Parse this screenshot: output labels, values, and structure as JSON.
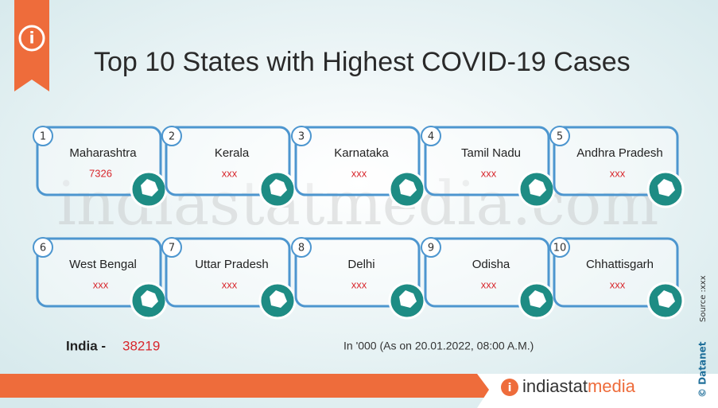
{
  "header": {
    "title": "Top 10 States with Highest COVID-19 Cases"
  },
  "states": [
    {
      "rank": 1,
      "name": "Maharashtra",
      "value": 7326
    },
    {
      "rank": 2,
      "name": "Kerala",
      "value": "xxx"
    },
    {
      "rank": 3,
      "name": "Karnataka",
      "value": "xxx"
    },
    {
      "rank": 4,
      "name": "Tamil Nadu",
      "value": "xxx"
    },
    {
      "rank": 5,
      "name": "Andhra Pradesh",
      "value": "xxx"
    },
    {
      "rank": 6,
      "name": "West Bengal",
      "value": "xxx"
    },
    {
      "rank": 7,
      "name": "Uttar Pradesh",
      "value": "xxx"
    },
    {
      "rank": 8,
      "name": "Delhi",
      "value": "xxx"
    },
    {
      "rank": 9,
      "name": "Odisha",
      "value": "xxx"
    },
    {
      "rank": 10,
      "name": "Chhattisgarh",
      "value": "xxx"
    }
  ],
  "total": {
    "label": "India -",
    "value": 38219
  },
  "note": "In '000 (As on 20.01.2022, 08:00 A.M.)",
  "watermark": "indiastatmedia.com",
  "footer": {
    "brand_a": "indiastat",
    "brand_b": "media",
    "copyright": "© Datanet",
    "source": "Source :xxx"
  }
}
